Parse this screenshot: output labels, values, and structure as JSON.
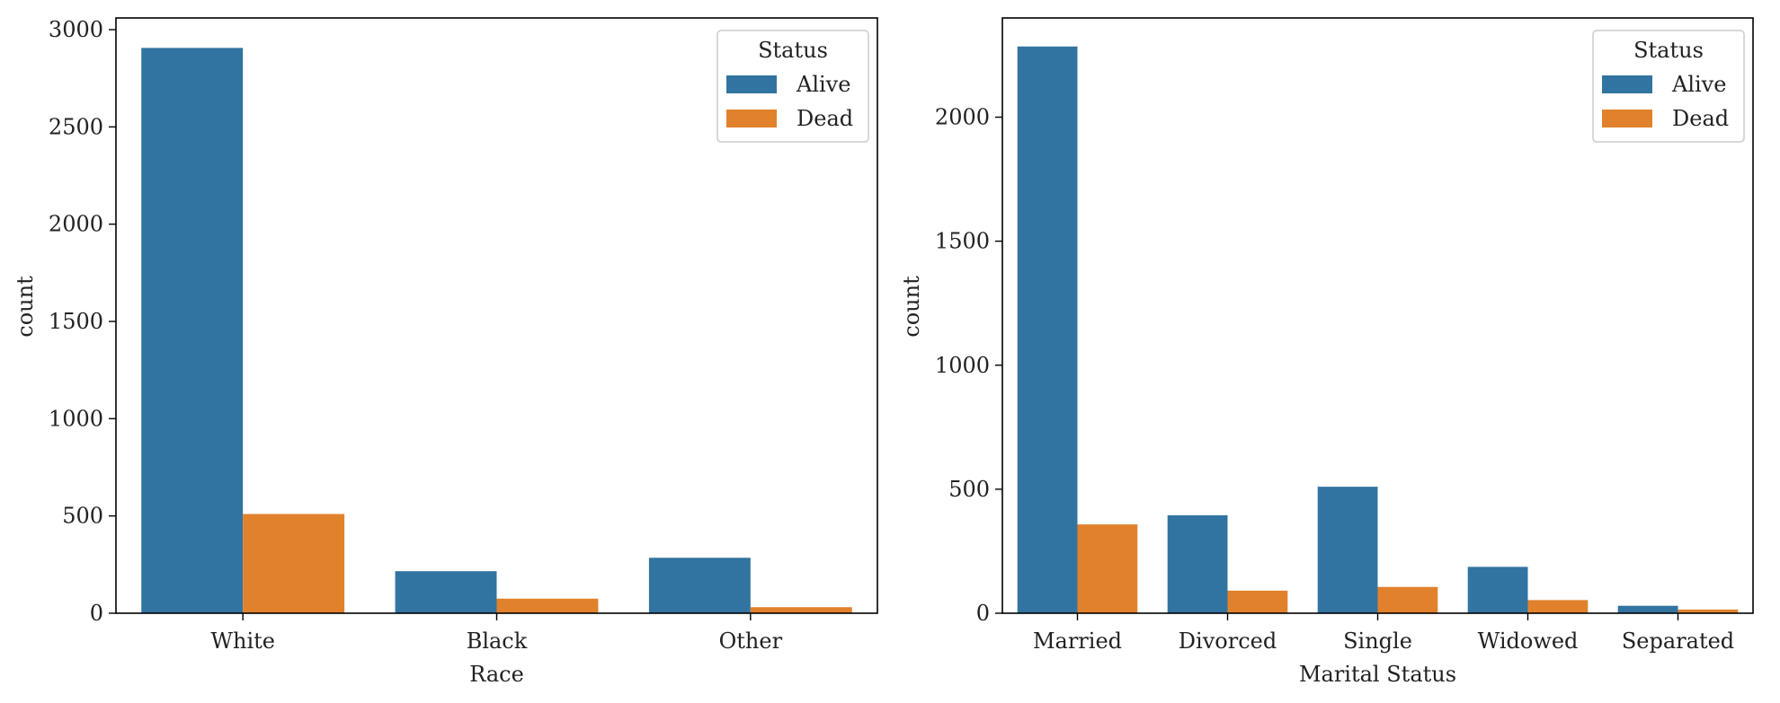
{
  "chart_data": [
    {
      "type": "bar",
      "xlabel": "Race",
      "ylabel": "count",
      "categories": [
        "White",
        "Black",
        "Other"
      ],
      "series": [
        {
          "name": "Alive",
          "values": [
            2906,
            216,
            285
          ]
        },
        {
          "name": "Dead",
          "values": [
            510,
            75,
            31
          ]
        }
      ],
      "ylim": [
        0,
        3060
      ],
      "yticks": [
        0,
        500,
        1000,
        1500,
        2000,
        2500,
        3000
      ],
      "grid": false,
      "legend": {
        "title": "Status",
        "placement": "top-right"
      }
    },
    {
      "type": "bar",
      "xlabel": "Marital Status",
      "ylabel": "count",
      "categories": [
        "Married",
        "Divorced",
        "Single",
        "Widowed",
        "Separated"
      ],
      "series": [
        {
          "name": "Alive",
          "values": [
            2285,
            395,
            510,
            187,
            30
          ]
        },
        {
          "name": "Dead",
          "values": [
            358,
            91,
            106,
            53,
            15
          ]
        }
      ],
      "ylim": [
        0,
        2400
      ],
      "yticks": [
        0,
        500,
        1000,
        1500,
        2000
      ],
      "grid": false,
      "legend": {
        "title": "Status",
        "placement": "top-right"
      }
    }
  ],
  "colors": {
    "Alive": "#3274a1",
    "Dead": "#e1812c"
  }
}
